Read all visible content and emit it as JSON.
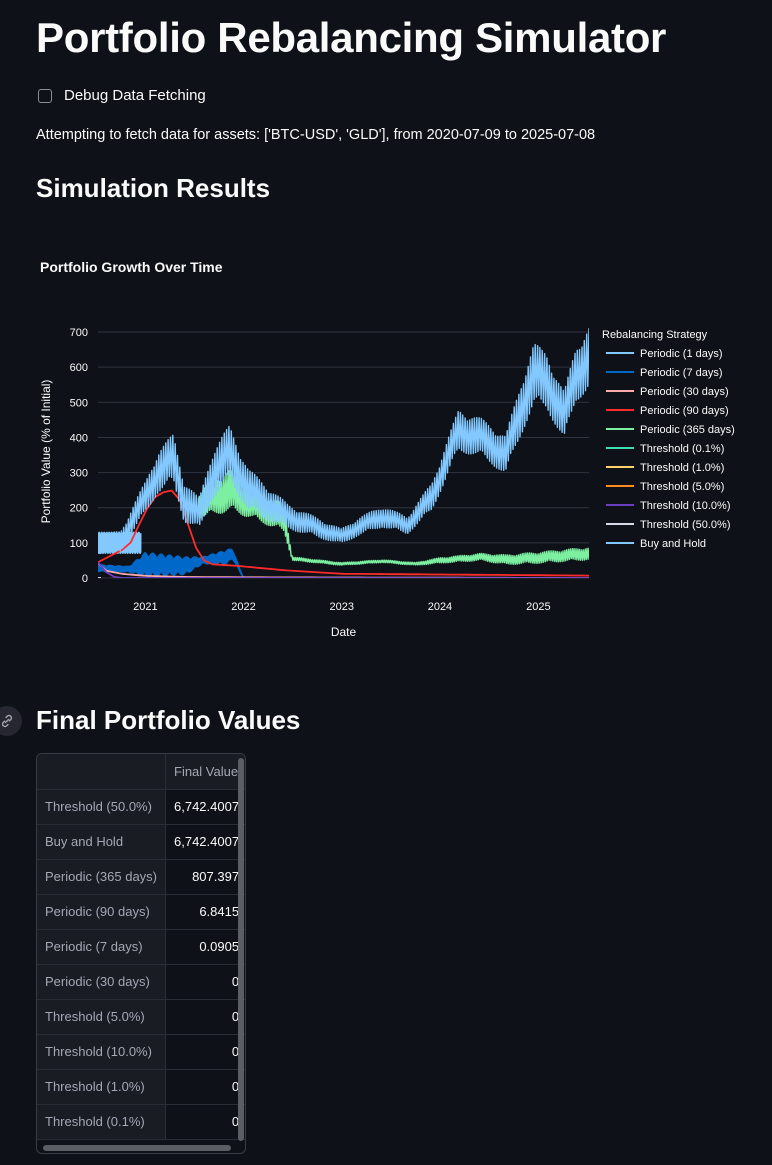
{
  "page_title": "Portfolio Rebalancing Simulator",
  "debug": {
    "label": "Debug Data Fetching",
    "checked": false
  },
  "info_text": "Attempting to fetch data for assets: ['BTC-USD', 'GLD'], from 2020-07-09 to 2025-07-08",
  "results_title": "Simulation Results",
  "final_title": "Final Portfolio Values",
  "icons": {
    "anchor_link": "link-icon"
  },
  "chart_data": {
    "type": "line",
    "title": "Portfolio Growth Over Time",
    "xlabel": "Date",
    "ylabel": "Portfolio Value (% of Initial)",
    "x_range": [
      "2020-07-09",
      "2025-07-08"
    ],
    "ylim": [
      0,
      720
    ],
    "x_ticks": [
      "2021",
      "2022",
      "2023",
      "2024",
      "2025"
    ],
    "y_ticks": [
      0,
      100,
      200,
      300,
      400,
      500,
      600,
      700
    ],
    "grid": true,
    "legend_title": "Rebalancing Strategy",
    "legend_position": "right",
    "series": [
      {
        "name": "Periodic (1 days)",
        "color": "#83c9ff",
        "x": [
          "2020-07-09",
          "2020-12-15"
        ],
        "y": [
          100,
          100
        ],
        "band": [
          30,
          30
        ]
      },
      {
        "name": "Periodic (7 days)",
        "color": "#0068c9",
        "x": [
          "2020-07-09",
          "2020-11-01",
          "2021-01-01",
          "2021-06-01",
          "2021-08-01",
          "2021-11-01",
          "2021-11-20",
          "2022-01-01"
        ],
        "y": [
          28,
          25,
          38,
          35,
          50,
          60,
          70,
          0
        ],
        "band": [
          10,
          8,
          35,
          25,
          10,
          20,
          15,
          0
        ]
      },
      {
        "name": "Periodic (30 days)",
        "color": "#ffabab",
        "x": [
          "2020-07-09",
          "2020-08-01",
          "2020-10-01",
          "2021-01-01",
          "2021-06-01",
          "2022-01-01",
          "2025-07-08"
        ],
        "y": [
          42,
          22,
          12,
          6,
          3,
          2,
          0
        ]
      },
      {
        "name": "Periodic (90 days)",
        "color": "#ff2b2b",
        "x": [
          "2020-07-09",
          "2020-11-01",
          "2021-01-01",
          "2021-02-15",
          "2021-04-15",
          "2021-05-20",
          "2021-06-20",
          "2021-07-20",
          "2021-08-20",
          "2021-12-01",
          "2022-06-01",
          "2023-01-01",
          "2025-07-08"
        ],
        "y": [
          45,
          90,
          190,
          240,
          250,
          210,
          120,
          65,
          40,
          35,
          22,
          12,
          6.84
        ]
      },
      {
        "name": "Periodic (365 days)",
        "color": "#7defa1",
        "x": [
          "2021-07-20",
          "2021-11-10",
          "2022-02-01",
          "2022-06-01",
          "2022-07-01",
          "2023-01-01",
          "2023-06-01",
          "2023-10-01",
          "2024-01-01",
          "2024-06-01",
          "2024-09-01",
          "2025-01-01",
          "2025-07-08"
        ],
        "y": [
          210,
          250,
          210,
          170,
          55,
          40,
          48,
          40,
          50,
          60,
          52,
          58,
          70
        ],
        "band": [
          40,
          60,
          40,
          40,
          5,
          4,
          4,
          4,
          8,
          10,
          14,
          16,
          18
        ]
      },
      {
        "name": "Threshold (0.1%)",
        "color": "#3ddbb0",
        "x": [
          "2020-07-09",
          "2020-07-20"
        ],
        "y": [
          0,
          0
        ]
      },
      {
        "name": "Threshold (1.0%)",
        "color": "#ffd16a",
        "x": [
          "2020-07-09",
          "2020-07-20"
        ],
        "y": [
          0,
          0
        ]
      },
      {
        "name": "Threshold (5.0%)",
        "color": "#ff8c1a",
        "x": [
          "2020-07-09",
          "2020-07-20"
        ],
        "y": [
          0,
          0
        ]
      },
      {
        "name": "Threshold (10.0%)",
        "color": "#6d3fc0",
        "x": [
          "2020-07-09",
          "2020-08-01",
          "2020-09-15",
          "2025-07-08"
        ],
        "y": [
          45,
          20,
          0,
          0
        ]
      },
      {
        "name": "Threshold (50.0%)",
        "color": "#d5dae5",
        "x": [
          "2020-07-09",
          "2020-07-20"
        ],
        "y": [
          0,
          0
        ]
      },
      {
        "name": "Buy and Hold",
        "color": "#83c9ff",
        "x": [
          "2020-07-09",
          "2020-10-01",
          "2021-01-01",
          "2021-02-15",
          "2021-04-15",
          "2021-05-25",
          "2021-07-20",
          "2021-09-05",
          "2021-11-10",
          "2022-01-20",
          "2022-06-15",
          "2022-12-30",
          "2023-03-01",
          "2023-06-01",
          "2023-09-01",
          "2023-12-01",
          "2024-03-10",
          "2024-06-01",
          "2024-09-01",
          "2024-11-10",
          "2024-12-15",
          "2025-02-01",
          "2025-04-07",
          "2025-05-20",
          "2025-07-08"
        ],
        "y": [
          95,
          105,
          230,
          300,
          340,
          220,
          180,
          290,
          355,
          250,
          175,
          118,
          145,
          175,
          150,
          230,
          420,
          400,
          350,
          510,
          580,
          560,
          460,
          580,
          630
        ],
        "band": [
          25,
          30,
          45,
          60,
          70,
          60,
          45,
          70,
          80,
          60,
          35,
          22,
          25,
          30,
          25,
          40,
          60,
          55,
          55,
          80,
          90,
          80,
          70,
          80,
          90
        ]
      }
    ]
  },
  "table": {
    "header": "Final Value",
    "rows": [
      {
        "label": "Threshold (50.0%)",
        "value": "6,742.4007"
      },
      {
        "label": "Buy and Hold",
        "value": "6,742.4007"
      },
      {
        "label": "Periodic (365 days)",
        "value": "807.397"
      },
      {
        "label": "Periodic (90 days)",
        "value": "6.8415"
      },
      {
        "label": "Periodic (7 days)",
        "value": "0.0905"
      },
      {
        "label": "Periodic (30 days)",
        "value": "0"
      },
      {
        "label": "Threshold (5.0%)",
        "value": "0"
      },
      {
        "label": "Threshold (10.0%)",
        "value": "0"
      },
      {
        "label": "Threshold (1.0%)",
        "value": "0"
      },
      {
        "label": "Threshold (0.1%)",
        "value": "0"
      }
    ]
  }
}
